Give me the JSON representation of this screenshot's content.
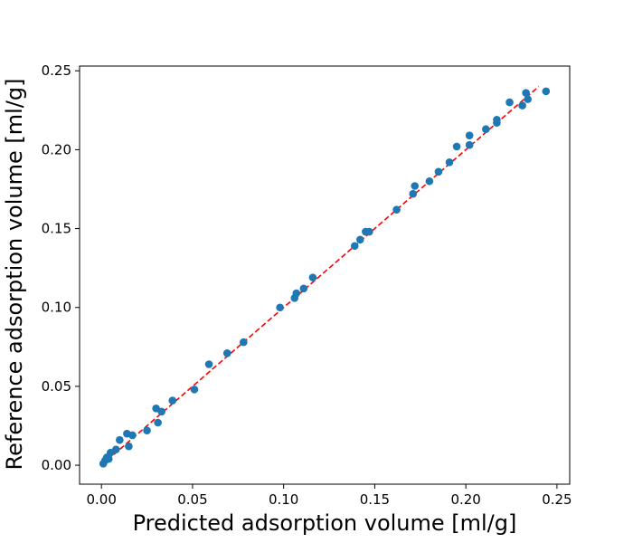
{
  "chart_data": {
    "type": "scatter",
    "title": "",
    "xlabel": "Predicted adsorption volume [ml/g]",
    "ylabel": "Reference adsorption volume [ml/g]",
    "xlim": [
      -0.012,
      0.257
    ],
    "ylim": [
      -0.012,
      0.253
    ],
    "xticks": [
      0.0,
      0.05,
      0.1,
      0.15,
      0.2,
      0.25
    ],
    "yticks": [
      0.0,
      0.05,
      0.1,
      0.15,
      0.2,
      0.25
    ],
    "xtick_labels": [
      "0.00",
      "0.05",
      "0.10",
      "0.15",
      "0.20",
      "0.25"
    ],
    "ytick_labels": [
      "0.00",
      "0.05",
      "0.10",
      "0.15",
      "0.20",
      "0.25"
    ],
    "grid": false,
    "series": [
      {
        "marker_color": "#1f77b4",
        "points": [
          [
            0.001,
            0.001
          ],
          [
            0.002,
            0.003
          ],
          [
            0.003,
            0.005
          ],
          [
            0.004,
            0.004
          ],
          [
            0.005,
            0.008
          ],
          [
            0.008,
            0.01
          ],
          [
            0.01,
            0.016
          ],
          [
            0.014,
            0.02
          ],
          [
            0.015,
            0.012
          ],
          [
            0.017,
            0.019
          ],
          [
            0.025,
            0.022
          ],
          [
            0.03,
            0.036
          ],
          [
            0.031,
            0.027
          ],
          [
            0.033,
            0.034
          ],
          [
            0.039,
            0.041
          ],
          [
            0.051,
            0.048
          ],
          [
            0.059,
            0.064
          ],
          [
            0.069,
            0.071
          ],
          [
            0.078,
            0.078
          ],
          [
            0.098,
            0.1
          ],
          [
            0.106,
            0.106
          ],
          [
            0.107,
            0.109
          ],
          [
            0.111,
            0.112
          ],
          [
            0.116,
            0.119
          ],
          [
            0.139,
            0.139
          ],
          [
            0.142,
            0.143
          ],
          [
            0.145,
            0.148
          ],
          [
            0.147,
            0.148
          ],
          [
            0.162,
            0.162
          ],
          [
            0.171,
            0.172
          ],
          [
            0.172,
            0.177
          ],
          [
            0.18,
            0.18
          ],
          [
            0.185,
            0.186
          ],
          [
            0.191,
            0.192
          ],
          [
            0.195,
            0.202
          ],
          [
            0.202,
            0.203
          ],
          [
            0.202,
            0.209
          ],
          [
            0.211,
            0.213
          ],
          [
            0.217,
            0.217
          ],
          [
            0.217,
            0.219
          ],
          [
            0.224,
            0.23
          ],
          [
            0.231,
            0.228
          ],
          [
            0.233,
            0.236
          ],
          [
            0.234,
            0.232
          ],
          [
            0.244,
            0.237
          ]
        ]
      }
    ],
    "reference_line": {
      "x": [
        0.0,
        0.24
      ],
      "y": [
        0.0,
        0.24
      ],
      "color": "#ff0000",
      "style": "dashed"
    }
  }
}
